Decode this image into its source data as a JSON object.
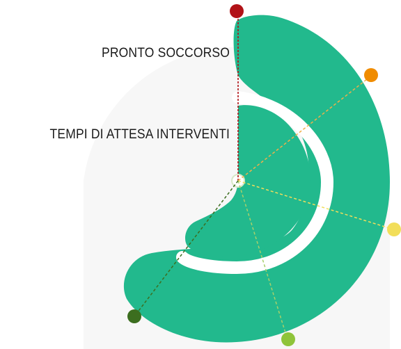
{
  "labels": {
    "pronto_soccorso": "PRONTO SOCCORSO",
    "tempi_attesa": "TEMPI DI ATTESA INTERVENTI"
  },
  "colors": {
    "gauge_fill": "#22b98d",
    "background_arc": "#f2f2f2",
    "marker_dark_red": "#b11217",
    "marker_orange": "#f08c00",
    "marker_yellow": "#f2de5a",
    "marker_light_green": "#8fc43a",
    "marker_dark_green": "#3c6e1f"
  },
  "markers": [
    {
      "name": "marker-dark-red",
      "color": "#b11217"
    },
    {
      "name": "marker-orange",
      "color": "#f08c00"
    },
    {
      "name": "marker-yellow",
      "color": "#f2de5a"
    },
    {
      "name": "marker-light-green",
      "color": "#8fc43a"
    },
    {
      "name": "marker-dark-green",
      "color": "#3c6e1f"
    }
  ]
}
